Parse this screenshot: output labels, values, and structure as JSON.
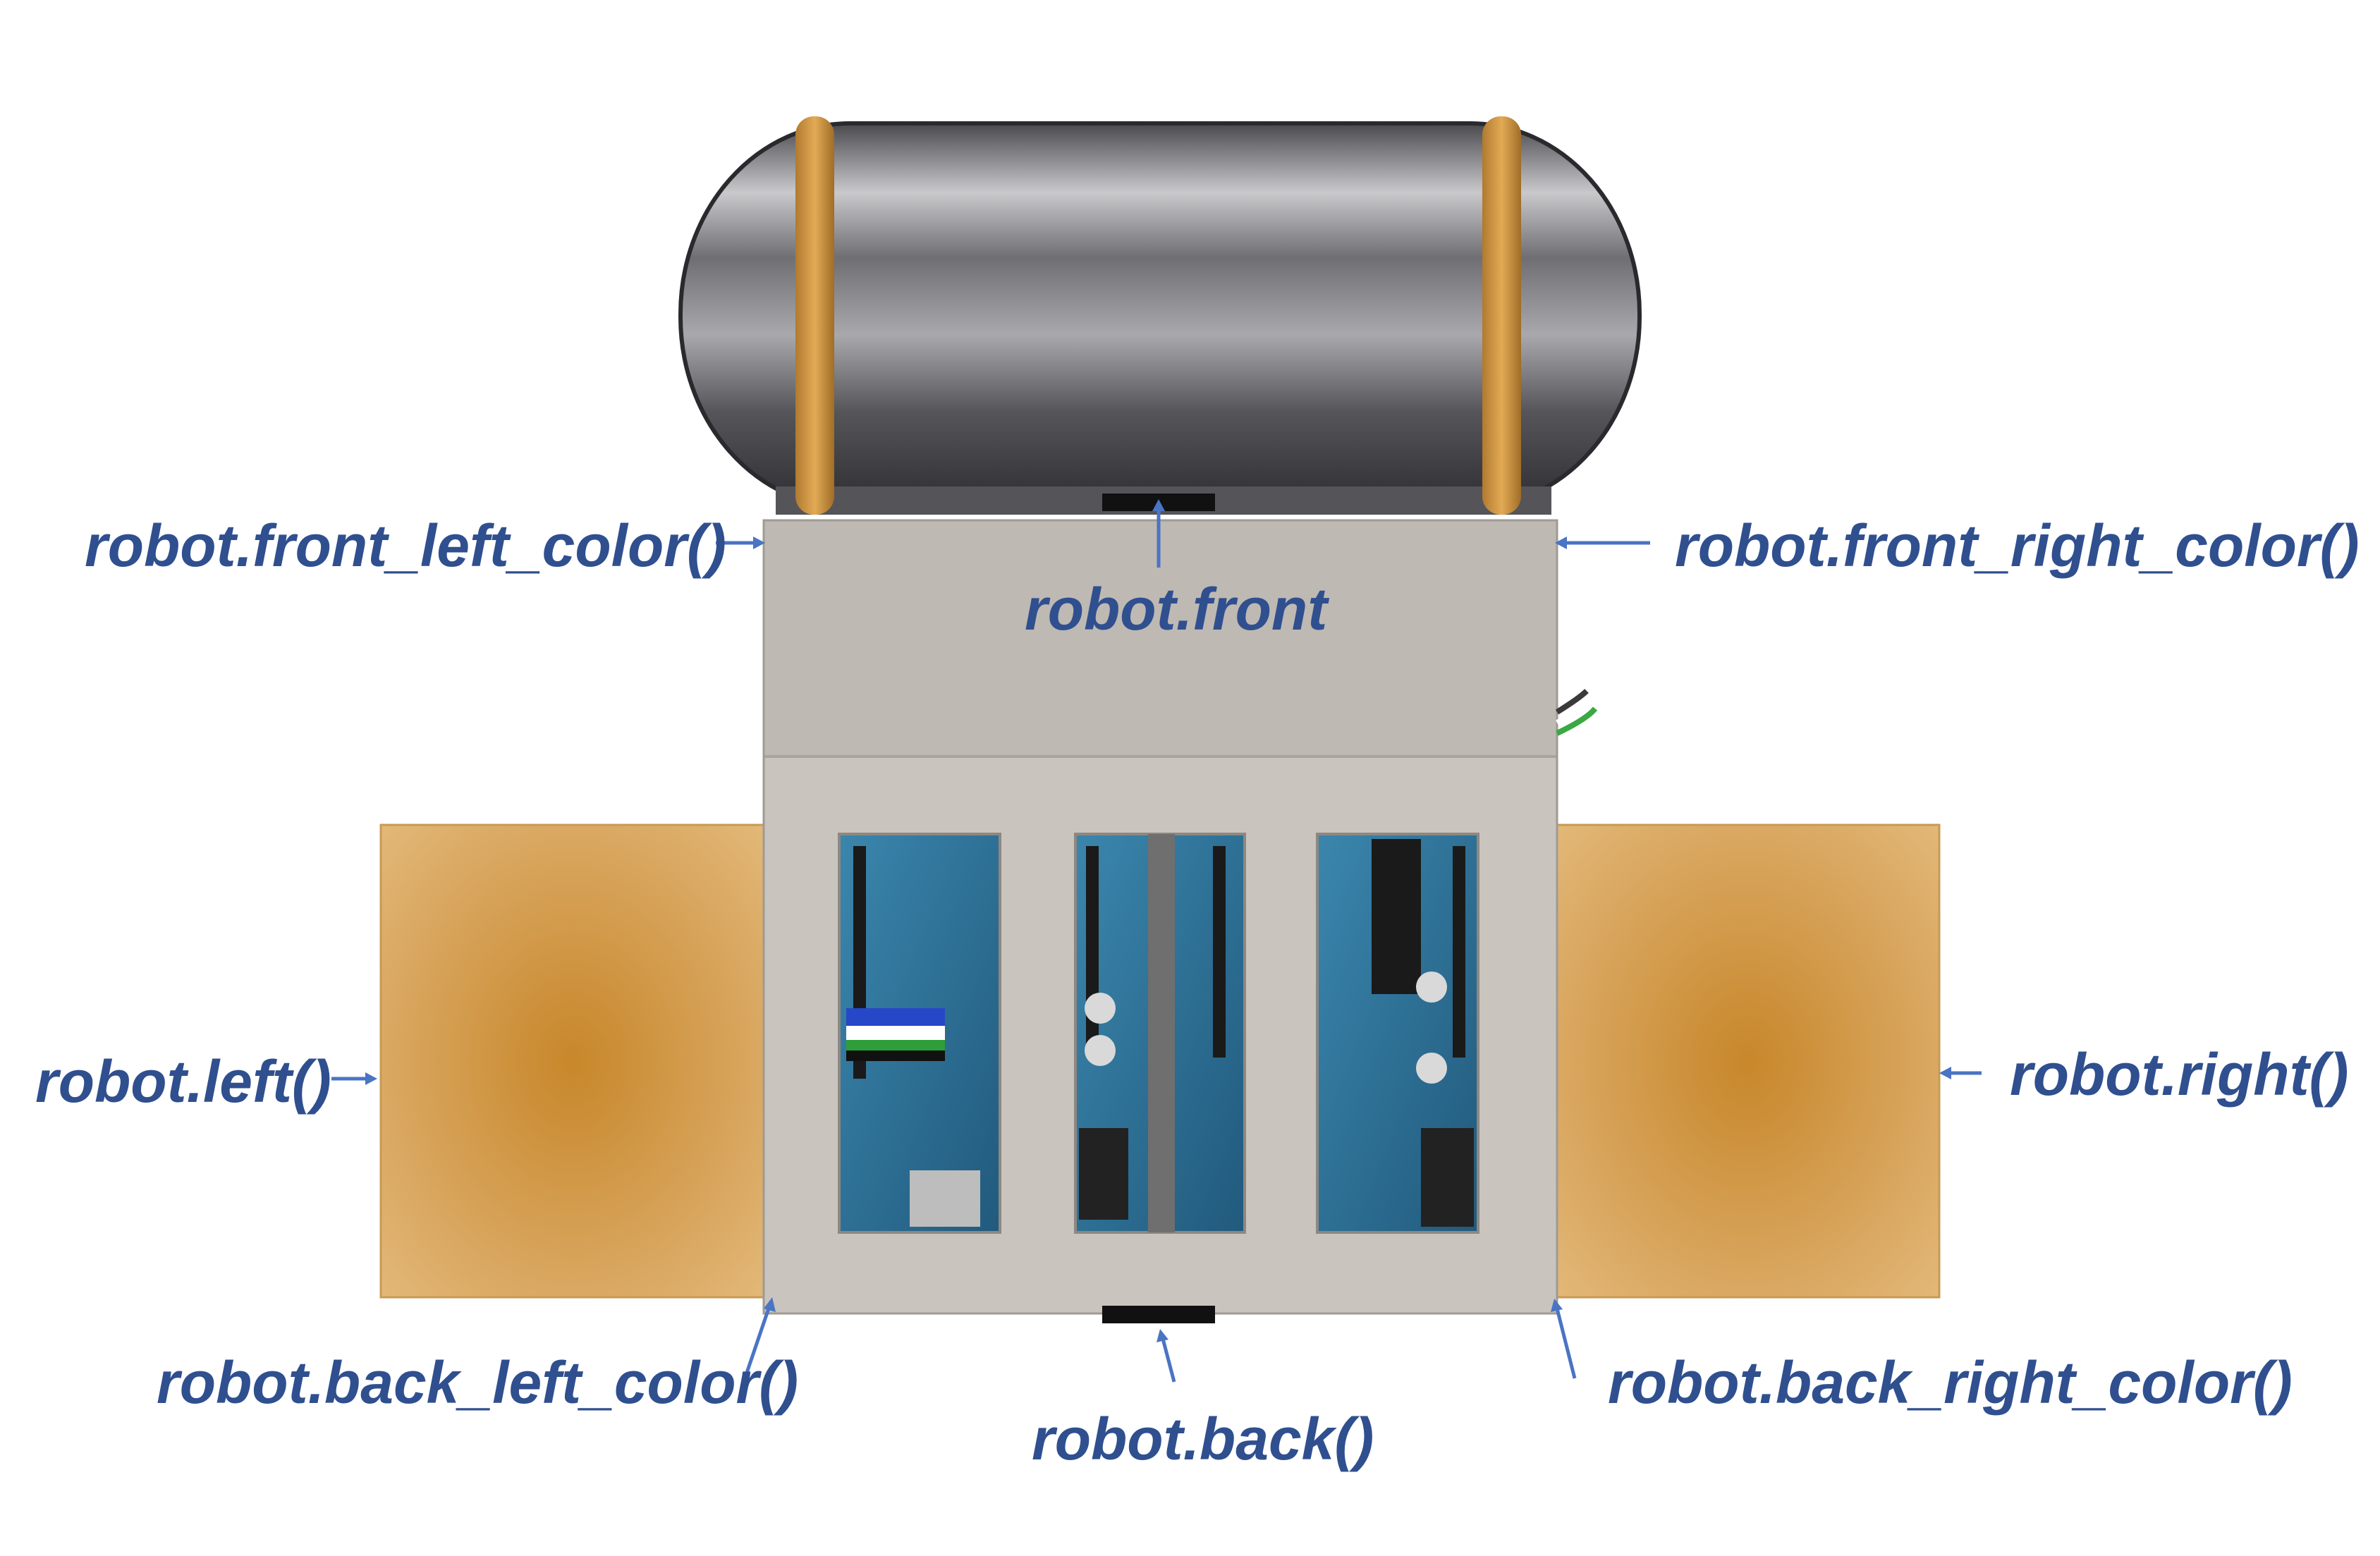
{
  "labels": {
    "front_left_color": "robot.front_left_color()",
    "front": "robot.front",
    "front_right_color": "robot.front_right_color()",
    "left": "robot.left()",
    "right": "robot.right()",
    "back_left_color": "robot.back_left_color()",
    "back": "robot.back()",
    "back_right_color": "robot.back_right_color()"
  },
  "colors": {
    "label": "#2f4f8f",
    "arrow": "#4a74c4",
    "body": "#bfbab4",
    "wheel": "#d4a256",
    "tank": "#8a8a8e",
    "band": "#c98f3f",
    "pcb": "#2d6f95"
  }
}
